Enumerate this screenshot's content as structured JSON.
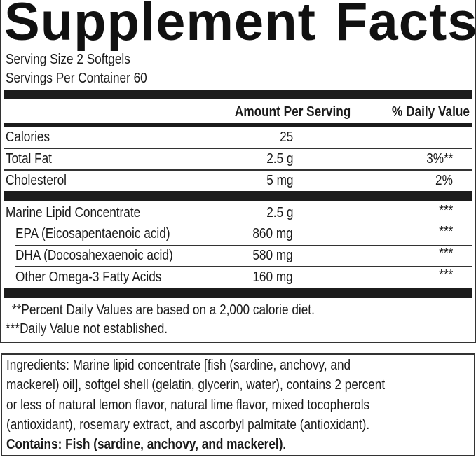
{
  "label": {
    "title_word1": "Supplement",
    "title_word2": "Facts",
    "serving_size": "Serving Size 2 Softgels",
    "servings_per_container": "Servings Per Container 60",
    "header_amount": "Amount Per Serving",
    "header_dv": "% Daily Value",
    "rows": [
      {
        "name": "Calories",
        "amount": "25",
        "dv": ""
      },
      {
        "name": "Total Fat",
        "amount": "2.5 g",
        "dv": "3%**"
      },
      {
        "name": "Cholesterol",
        "amount": "5 mg",
        "dv": "2%"
      },
      {
        "name": "Marine Lipid Concentrate",
        "amount": "2.5 g",
        "dv": "***"
      },
      {
        "name": "EPA (Eicosapentaenoic acid)",
        "amount": "860 mg",
        "dv": "***"
      },
      {
        "name": "DHA (Docosahexaenoic acid)",
        "amount": "580 mg",
        "dv": "***"
      },
      {
        "name": "Other Omega-3 Fatty Acids",
        "amount": "160 mg",
        "dv": "***"
      }
    ],
    "footnote1": "**Percent Daily Values are based on a 2,000 calorie diet.",
    "footnote2": "***Daily Value not established."
  },
  "ingredients": {
    "lines": [
      "Ingredients: Marine lipid concentrate [fish (sardine, anchovy, and",
      "mackerel) oil], softgel shell (gelatin, glycerin, water), contains 2 percent",
      "or less of natural lemon flavor, natural lime flavor, mixed tocopherols",
      "(antioxidant), rosemary extract, and ascorbyl palmitate (antioxidant)."
    ],
    "contains": "Contains: Fish (sardine, anchovy, and mackerel)."
  }
}
